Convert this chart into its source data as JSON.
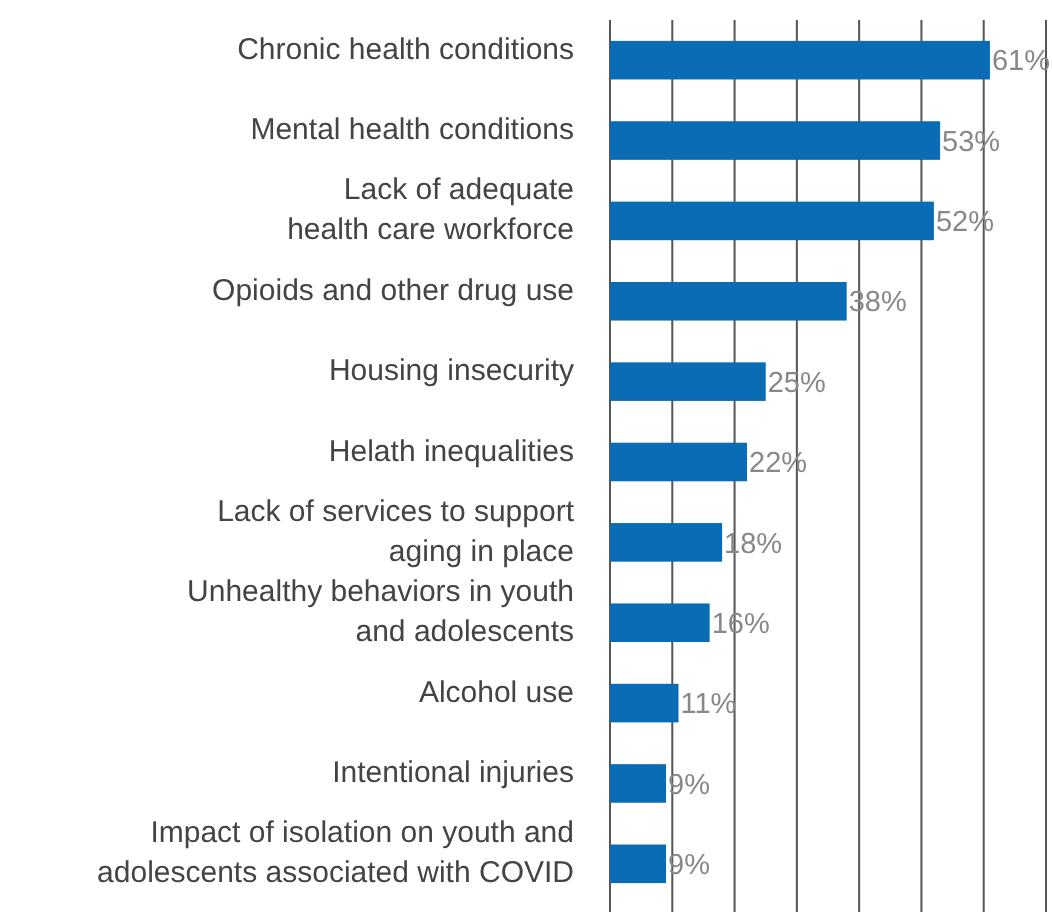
{
  "chart_data": {
    "type": "bar",
    "orientation": "horizontal",
    "categories": [
      "Chronic health conditions",
      "Mental health conditions",
      "Lack of adequate\nhealth care workforce",
      "Opioids and other drug use",
      "Housing insecurity",
      "Helath inequalities",
      "Lack of services to support\naging in place",
      "Unhealthy behaviors in youth\nand adolescents",
      "Alcohol use",
      "Intentional injuries",
      "Impact of isolation on youth and\nadolescents associated with COVID"
    ],
    "values": [
      61,
      53,
      52,
      38,
      25,
      22,
      18,
      16,
      11,
      9,
      9
    ],
    "value_labels": [
      "61%",
      "53%",
      "52%",
      "38%",
      "25%",
      "22%",
      "18%",
      "16%",
      "11%",
      "9%",
      "9%"
    ],
    "color": "#0a6cb4",
    "xlim": [
      0,
      70
    ],
    "xticks": [
      {
        "value": 0,
        "label": null
      },
      {
        "value": 10,
        "label": null
      },
      {
        "value": 20,
        "label": null
      },
      {
        "value": 30,
        "label": null
      },
      {
        "value": 40,
        "label": null
      },
      {
        "value": 50,
        "label": null
      },
      {
        "value": 60,
        "label": null
      },
      {
        "value": 70,
        "label": null
      }
    ],
    "grid": "x"
  }
}
